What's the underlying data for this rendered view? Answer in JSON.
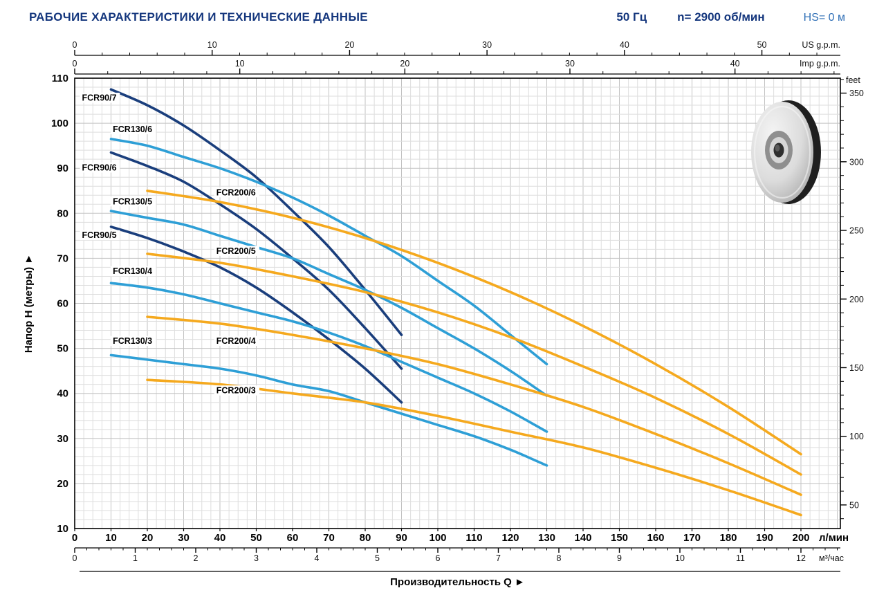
{
  "header": {
    "title": "РАБОЧИЕ ХАРАКТЕРИСТИКИ И ТЕХНИЧЕСКИЕ ДАННЫЕ",
    "frequency": "50 Гц",
    "speed": "n= 2900 об/мин",
    "suction_head": "HS= 0 м"
  },
  "icons": {
    "arrow_right": "►",
    "impeller_photo": "pump-impeller"
  },
  "chart_data": {
    "type": "line",
    "title": "РАБОЧИЕ ХАРАКТЕРИСТИКИ И ТЕХНИЧЕСКИЕ ДАННЫЕ",
    "xlabel": "Производительность Q",
    "ylabel": "Напор H (метры)",
    "xlim": [
      0,
      200
    ],
    "ylim": [
      10,
      110
    ],
    "grid": true,
    "legend": "inline-labels",
    "axes": {
      "y_m": {
        "label": "Напор H (метры)",
        "min": 10,
        "max": 110,
        "major": 10,
        "minor": 2
      },
      "y_feet": {
        "label": "feet",
        "min": 50,
        "max": 350,
        "major": 50,
        "minor": 10,
        "m_per_unit": 0.3048
      },
      "x_lmin": {
        "label": "л/мин",
        "min": 0,
        "max": 200,
        "major": 10,
        "minor": 2.5
      },
      "x_m3h": {
        "label": "м³/час",
        "min": 0,
        "max": 12,
        "major": 1,
        "minor": 0.2,
        "lmin_per_unit": 16.6667
      },
      "x_usgpm": {
        "label": "US g.p.m.",
        "min": 0,
        "max": 50,
        "major": 10,
        "minor": 2,
        "lmin_per_unit": 3.785
      },
      "x_impgpm": {
        "label": "Imp g.p.m.",
        "min": 0,
        "max": 40,
        "major": 10,
        "minor": 2,
        "lmin_per_unit": 4.546
      }
    },
    "series": [
      {
        "name": "FCR90/7",
        "color": "#1a3e7c",
        "x": [
          10,
          20,
          30,
          40,
          50,
          60,
          70,
          80,
          90
        ],
        "h": [
          107.5,
          104,
          99.5,
          94,
          88,
          80.5,
          72.5,
          63,
          53
        ],
        "label_at": [
          2,
          105
        ]
      },
      {
        "name": "FCR90/6",
        "color": "#1a3e7c",
        "x": [
          10,
          20,
          30,
          40,
          50,
          60,
          70,
          80,
          90
        ],
        "h": [
          93.5,
          90.5,
          87,
          82,
          76.5,
          70,
          63,
          54.5,
          45.5
        ],
        "label_at": [
          2,
          89.5
        ]
      },
      {
        "name": "FCR90/5",
        "color": "#1a3e7c",
        "x": [
          10,
          20,
          30,
          40,
          50,
          60,
          70,
          80,
          90
        ],
        "h": [
          77,
          74.5,
          71.5,
          68,
          63.5,
          58,
          52,
          45.5,
          38
        ],
        "label_at": [
          2,
          74.5
        ]
      },
      {
        "name": "FCR130/6",
        "color": "#2e9fd6",
        "x": [
          10,
          20,
          30,
          40,
          50,
          60,
          70,
          80,
          90,
          100,
          110,
          120,
          130
        ],
        "h": [
          96.5,
          95,
          92.5,
          90,
          87,
          83.5,
          79.5,
          75,
          70.5,
          65,
          59.5,
          53,
          46.5
        ],
        "label_at": [
          10.5,
          98
        ]
      },
      {
        "name": "FCR130/5",
        "color": "#2e9fd6",
        "x": [
          10,
          20,
          30,
          40,
          50,
          60,
          70,
          80,
          90,
          100,
          110,
          120,
          130
        ],
        "h": [
          80.5,
          79,
          77.5,
          75,
          72.5,
          70,
          66.5,
          63,
          59,
          54.5,
          50,
          45,
          39.5
        ],
        "label_at": [
          10.5,
          82
        ]
      },
      {
        "name": "FCR130/4",
        "color": "#2e9fd6",
        "x": [
          10,
          20,
          30,
          40,
          50,
          60,
          70,
          80,
          90,
          100,
          110,
          120,
          130
        ],
        "h": [
          64.5,
          63.5,
          62,
          60,
          58,
          56,
          53.5,
          50.5,
          47,
          43.5,
          40,
          36,
          31.5
        ],
        "label_at": [
          10.5,
          66.5
        ]
      },
      {
        "name": "FCR130/3",
        "color": "#2e9fd6",
        "x": [
          10,
          20,
          30,
          40,
          50,
          60,
          70,
          80,
          90,
          100,
          110,
          120,
          130
        ],
        "h": [
          48.5,
          47.5,
          46.5,
          45.5,
          44,
          42,
          40.5,
          38,
          35.5,
          33,
          30.5,
          27.5,
          24
        ],
        "label_at": [
          10.5,
          51
        ]
      },
      {
        "name": "FCR200/6",
        "color": "#f5a91e",
        "x": [
          20,
          40,
          60,
          80,
          100,
          120,
          140,
          160,
          180,
          200
        ],
        "h": [
          85,
          82.5,
          79,
          74.5,
          69,
          62.5,
          55,
          46.5,
          37,
          26.5
        ],
        "label_at": [
          39,
          84
        ]
      },
      {
        "name": "FCR200/5",
        "color": "#f5a91e",
        "x": [
          20,
          40,
          60,
          80,
          100,
          120,
          140,
          160,
          180,
          200
        ],
        "h": [
          71,
          69,
          66,
          62.5,
          58,
          52.5,
          46,
          39,
          31,
          22
        ],
        "label_at": [
          39,
          71
        ]
      },
      {
        "name": "FCR200/4",
        "color": "#f5a91e",
        "x": [
          20,
          40,
          60,
          80,
          100,
          120,
          140,
          160,
          180,
          200
        ],
        "h": [
          57,
          55.5,
          53,
          50,
          46.5,
          42,
          37,
          31,
          24.5,
          17.5
        ],
        "label_at": [
          39,
          51
        ]
      },
      {
        "name": "FCR200/3",
        "color": "#f5a91e",
        "x": [
          20,
          40,
          60,
          80,
          100,
          120,
          140,
          160,
          180,
          200
        ],
        "h": [
          43,
          42,
          40,
          38,
          35,
          31.5,
          28,
          23.5,
          18.5,
          13
        ],
        "label_at": [
          39,
          40
        ]
      }
    ]
  }
}
